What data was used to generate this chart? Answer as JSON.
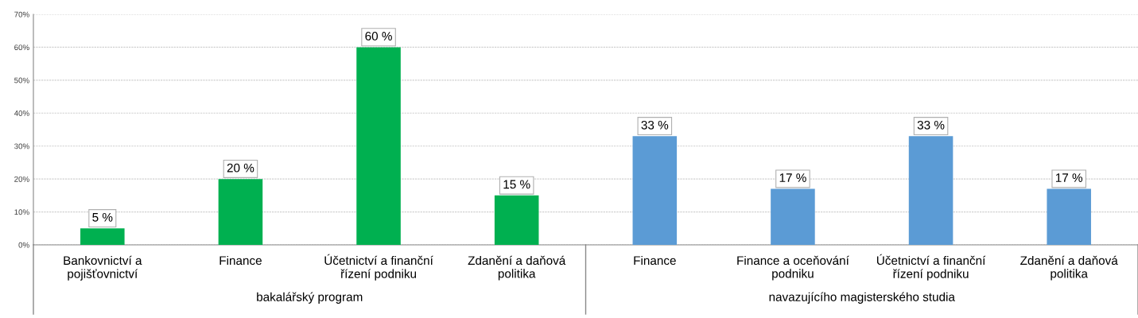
{
  "chart_data": {
    "type": "bar",
    "categories": [
      "Bankovnictví a\npojišťovnictví",
      "Finance",
      "Účetnictví a finanční\nřízení podniku",
      "Zdanění a daňová\npolitika",
      "Finance",
      "Finance a oceňování\npodniku",
      "Účetnictví a finanční\nřízení podniku",
      "Zdanění a daňová\npolitika"
    ],
    "values": [
      5,
      20,
      60,
      15,
      33,
      17,
      33,
      17
    ],
    "value_labels": [
      "5 %",
      "20 %",
      "60 %",
      "15 %",
      "33 %",
      "17 %",
      "33 %",
      "17 %"
    ],
    "colors": [
      "#00b050",
      "#00b050",
      "#00b050",
      "#00b050",
      "#5b9bd5",
      "#5b9bd5",
      "#5b9bd5",
      "#5b9bd5"
    ],
    "ylim": [
      0,
      70
    ],
    "yticks": [
      {
        "value": 0,
        "label": "0%"
      },
      {
        "value": 10,
        "label": "10%"
      },
      {
        "value": 20,
        "label": "20%"
      },
      {
        "value": 30,
        "label": "30%"
      },
      {
        "value": 40,
        "label": "40%"
      },
      {
        "value": 50,
        "label": "50%"
      },
      {
        "value": 60,
        "label": "60%"
      },
      {
        "value": 70,
        "label": "70%"
      }
    ],
    "grid": "y",
    "annotations": [
      "bakalářský program",
      "navazujícího magisterského studia"
    ]
  }
}
